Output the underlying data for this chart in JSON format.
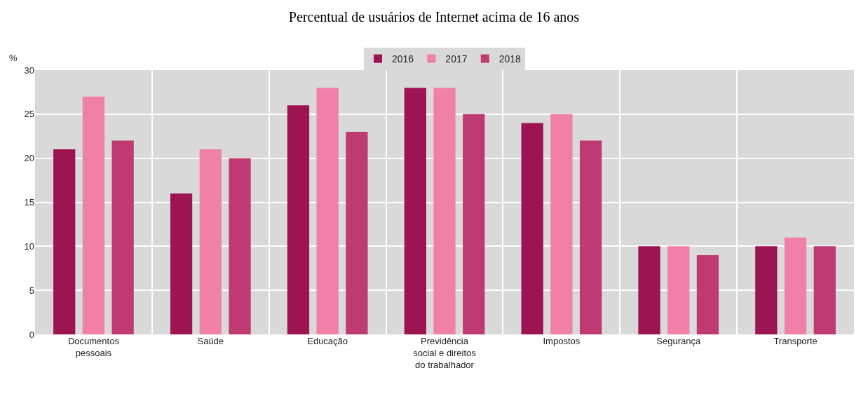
{
  "chart_data": {
    "type": "bar",
    "title": "Percentual de usuários de Internet acima de 16 anos",
    "ylabel": "%",
    "categories": [
      "Documentos\npessoais",
      "Saúde",
      "Educação",
      "Previdência\nsocial e direitos\ndo trabalhador",
      "Impostos",
      "Segurança",
      "Transporte"
    ],
    "series": [
      {
        "name": "2016",
        "color": "#9c1452",
        "values": [
          21,
          16,
          26,
          28,
          24,
          10,
          10
        ]
      },
      {
        "name": "2017",
        "color": "#f080a8",
        "values": [
          27,
          21,
          28,
          28,
          25,
          10,
          11
        ]
      },
      {
        "name": "2018",
        "color": "#c03a72",
        "values": [
          22,
          20,
          23,
          25,
          22,
          9,
          10
        ]
      }
    ],
    "ylim": [
      0,
      30
    ],
    "yticks": [
      0,
      5,
      10,
      15,
      20,
      25,
      30
    ],
    "grid": true,
    "legend": "top"
  }
}
